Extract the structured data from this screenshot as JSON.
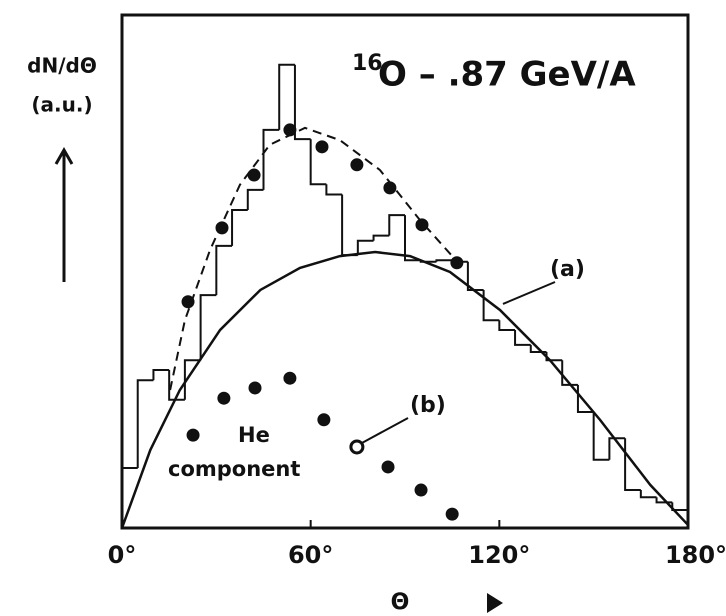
{
  "chart_data": {
    "type": "line",
    "title": {
      "mass": "16",
      "text": "O – .87 GeV/A"
    },
    "ylabel": [
      "dN/dΘ",
      "(a.u.)"
    ],
    "xlabel": "Θ",
    "xlim": [
      0,
      180
    ],
    "ylim": [
      0,
      100
    ],
    "xticks": [
      {
        "value": 0,
        "label": "0°"
      },
      {
        "value": 60,
        "label": "60°"
      },
      {
        "value": 120,
        "label": "120°"
      },
      {
        "value": 180,
        "label": "180°"
      }
    ],
    "histogram": {
      "color": "#111",
      "bins": [
        0,
        5,
        10,
        15,
        20,
        25,
        30,
        35,
        40,
        45,
        50,
        55,
        60,
        65,
        70,
        75,
        80,
        85,
        90,
        95,
        100,
        105,
        110,
        115,
        120,
        125,
        130,
        135,
        140,
        145,
        150,
        155,
        160,
        165,
        170,
        175,
        180
      ],
      "counts": [
        11.7,
        28.8,
        30.8,
        25,
        32.7,
        45.4,
        55,
        62,
        65.9,
        77.6,
        90.3,
        75.8,
        67,
        65,
        53.2,
        56,
        57,
        61,
        52.2,
        51.9,
        52.2,
        51.9,
        46.4,
        40.5,
        38.6,
        35.7,
        34.3,
        32.7,
        27.9,
        22.6,
        13.3,
        17.5,
        7.4,
        6,
        5,
        3.5
      ]
    },
    "series": [
      {
        "style": "dashed",
        "color": "#111",
        "x": [
          15.3,
          20,
          28,
          37.5,
          47,
          58.2,
          69.3,
          82,
          94.8,
          107.5
        ],
        "values": [
          26.9,
          40.5,
          54.2,
          66.9,
          74.7,
          78,
          75.6,
          69.8,
          60,
          51.3
        ]
      },
      {
        "style": "dots",
        "color": "#111",
        "x": [
          21,
          31.8,
          42,
          53.4,
          63.6,
          74.7,
          85.2,
          95.4,
          106.5
        ],
        "values": [
          44.1,
          58.5,
          68.8,
          77.6,
          74.3,
          70.8,
          66.3,
          59.1,
          51.7
        ]
      },
      {
        "style": "solid",
        "color": "#111",
        "name": "(a)",
        "x": [
          0,
          9,
          18.4,
          31.2,
          44,
          56.6,
          69.3,
          80.5,
          91.6,
          104.3,
          120.2,
          136.1,
          152,
          168,
          180
        ],
        "values": [
          0,
          15.2,
          26.9,
          38.6,
          46.4,
          50.7,
          53,
          53.8,
          53,
          49.9,
          42.5,
          32.7,
          21.1,
          8.4,
          0.6
        ]
      },
      {
        "style": "dots",
        "color": "#111",
        "name": "(b)",
        "label_point": 5,
        "x": [
          22.6,
          32.4,
          42.3,
          53.4,
          64.2,
          74.7,
          84.6,
          95.1,
          105
        ],
        "values": [
          18.1,
          25.3,
          27.3,
          29.2,
          21.1,
          15.8,
          11.9,
          7.4,
          2.7
        ]
      }
    ],
    "annotation": "He component"
  }
}
